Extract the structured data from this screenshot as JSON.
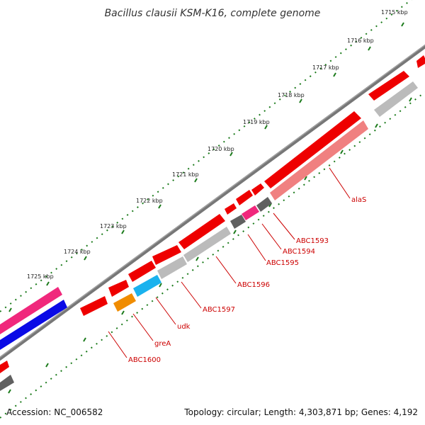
{
  "title": "Bacillus clausii KSM-K16, complete genome",
  "footer": {
    "accession": "Accession: NC_006582",
    "summary": "Topology: circular; Length: 4,303,871 bp; Genes: 4,192"
  },
  "kbp_ticks": [
    "1715 kbp",
    "1716 kbp",
    "1717 kbp",
    "1718 kbp",
    "1719 kbp",
    "1720 kbp",
    "1721 kbp",
    "1722 kbp",
    "1723 kbp",
    "1724 kbp",
    "1725 kbp"
  ],
  "gene_labels": [
    "alaS",
    "ABC1593",
    "ABC1594",
    "ABC1595",
    "ABC1596",
    "ABC1597",
    "udk",
    "greA",
    "ABC1600"
  ],
  "colors": {
    "backbone": "#777777",
    "tick": "#1a7a1a",
    "cds_red": "#ee0000",
    "cds_gray": "#bbbbbb",
    "cds_pink": "#f0287c",
    "cds_blue": "#0a0ae6",
    "cds_cyan": "#1ab2ee",
    "cds_orange": "#f08c00",
    "cds_dark": "#606060",
    "label": "#cc0000"
  }
}
